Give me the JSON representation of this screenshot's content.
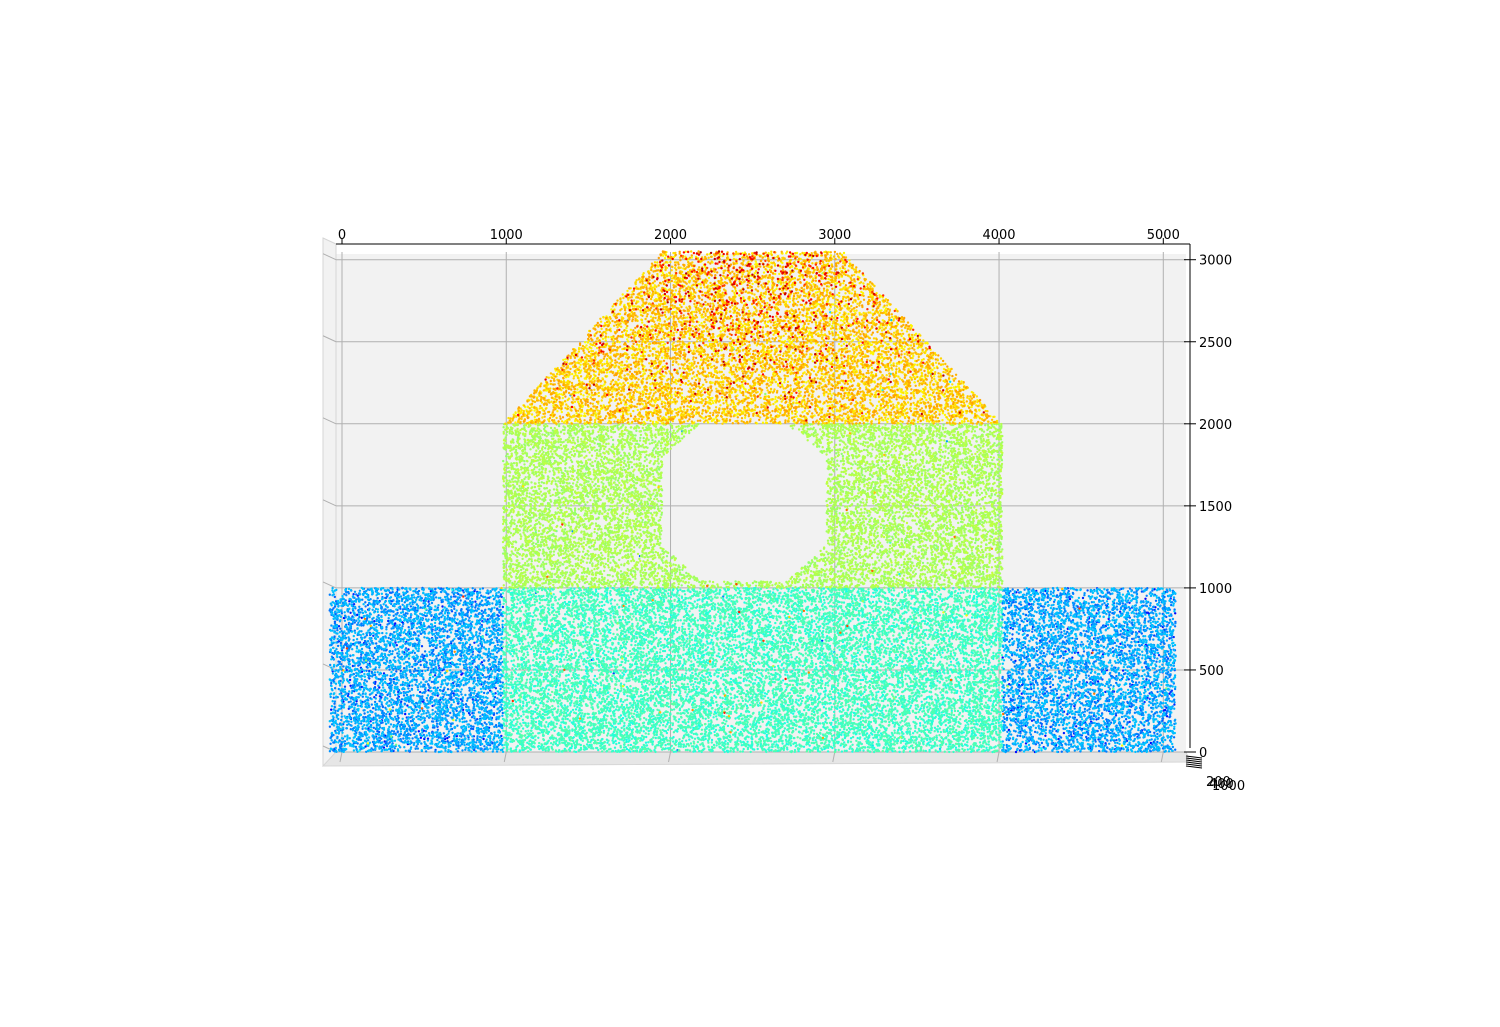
{
  "chart_data": {
    "type": "scatter",
    "projection": "3d",
    "colormap": "jet",
    "grid": true,
    "legend": false,
    "title": "",
    "xlabel": "",
    "ylabel": "",
    "zlabel": "",
    "xlim": [
      -100,
      5100
    ],
    "zlim": [
      -60,
      3050
    ],
    "ylim": [
      0,
      1000
    ],
    "x_ticks": [
      "0",
      "1000",
      "2000",
      "3000",
      "4000",
      "5000"
    ],
    "z_ticks": [
      "0",
      "500",
      "1000",
      "1500",
      "2000",
      "2500",
      "3000"
    ],
    "y_ticks": [
      "0",
      "200",
      "400",
      "600",
      "800",
      "1000"
    ],
    "y_ticks_visible": [
      "200",
      "400",
      "1000"
    ],
    "regions": [
      {
        "name": "left-base",
        "polygon": [
          [
            -75,
            0
          ],
          [
            980,
            0
          ],
          [
            980,
            1000
          ],
          [
            -75,
            1000
          ]
        ],
        "color_value": [
          0.22,
          0.32
        ],
        "ramp": "outer"
      },
      {
        "name": "right-base",
        "polygon": [
          [
            4020,
            0
          ],
          [
            5075,
            0
          ],
          [
            5075,
            1000
          ],
          [
            4020,
            1000
          ]
        ],
        "color_value": [
          0.22,
          0.32
        ],
        "ramp": "outer"
      },
      {
        "name": "center-base",
        "polygon": [
          [
            980,
            0
          ],
          [
            4020,
            0
          ],
          [
            4020,
            1000
          ],
          [
            980,
            1000
          ]
        ],
        "color_value": [
          0.4,
          0.46
        ],
        "ramp": "none"
      },
      {
        "name": "middle-block",
        "polygon": [
          [
            980,
            1000
          ],
          [
            4020,
            1000
          ],
          [
            4020,
            2000
          ],
          [
            980,
            2000
          ]
        ],
        "color_value": [
          0.52,
          0.56
        ],
        "ramp": "none"
      },
      {
        "name": "top-trapezoid",
        "polygon": [
          [
            980,
            2000
          ],
          [
            4020,
            2000
          ],
          [
            3050,
            3050
          ],
          [
            1950,
            3050
          ]
        ],
        "color_value": [
          0.62,
          0.72
        ],
        "ramp": "top"
      }
    ],
    "hole": {
      "polygon": [
        [
          2180,
          1040
        ],
        [
          2710,
          1040
        ],
        [
          2950,
          1260
        ],
        [
          2950,
          1800
        ],
        [
          2710,
          2000
        ],
        [
          2180,
          2000
        ],
        [
          1950,
          1800
        ],
        [
          1950,
          1260
        ]
      ]
    },
    "point_count": 45000,
    "point_count_note": ""
  }
}
